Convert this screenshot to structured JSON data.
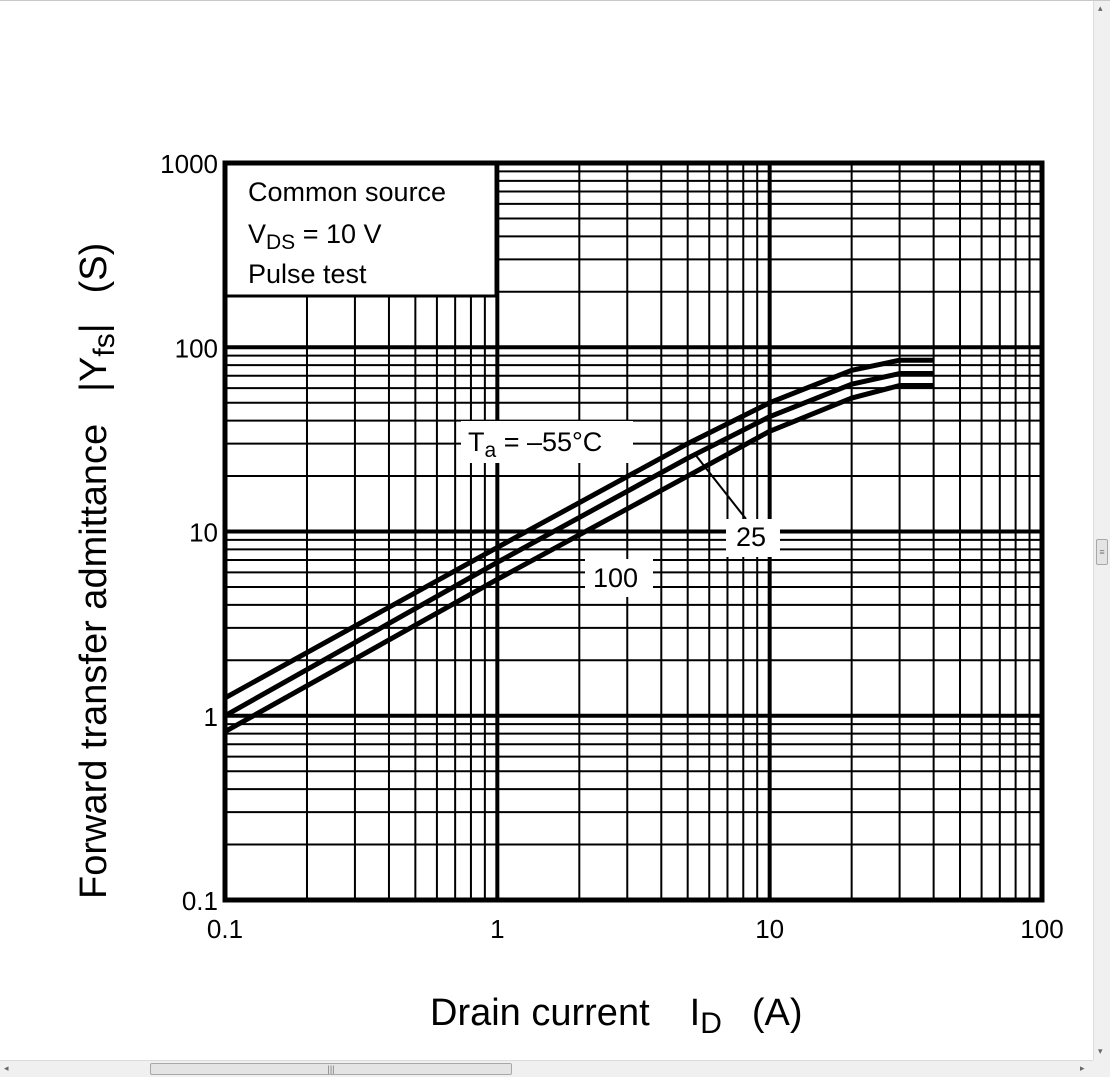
{
  "chart_data": {
    "type": "line",
    "x_scale": "log",
    "y_scale": "log",
    "xlim": [
      0.1,
      100
    ],
    "ylim": [
      0.1,
      1000
    ],
    "x_ticks": [
      "0.1",
      "1",
      "10",
      "100"
    ],
    "y_ticks": [
      "0.1",
      "1",
      "10",
      "100",
      "1000"
    ],
    "x_tick_values": [
      0.1,
      1,
      10,
      100
    ],
    "y_tick_values": [
      0.1,
      1,
      10,
      100,
      1000
    ],
    "xlabel": "Drain current",
    "xlabel_symbol": "I",
    "xlabel_sub": "D",
    "xlabel_unit": "(A)",
    "ylabel": "Forward transfer admittance",
    "ylabel_symbol": "|Y",
    "ylabel_sub": "fs",
    "ylabel_symbol_end": "|",
    "ylabel_unit": "(S)",
    "grid": true,
    "conditions": {
      "line1": "Common source",
      "line2_symbol": "V",
      "line2_sub": "DS",
      "line2_value": " = 10 V",
      "line3": "Pulse test"
    },
    "series": [
      {
        "name": "-55",
        "x": [
          0.1,
          1,
          5,
          10,
          20,
          30,
          40
        ],
        "y": [
          1.25,
          8.2,
          30,
          50,
          75,
          85,
          85
        ]
      },
      {
        "name": "25",
        "x": [
          0.1,
          1,
          5,
          10,
          20,
          30,
          40
        ],
        "y": [
          1.0,
          6.8,
          25,
          42,
          63,
          72,
          72
        ]
      },
      {
        "name": "100",
        "x": [
          0.1,
          1,
          5,
          10,
          20,
          30,
          40
        ],
        "y": [
          0.82,
          5.5,
          20,
          35,
          53,
          62,
          62
        ]
      }
    ],
    "annotations": {
      "ta_symbol": "T",
      "ta_sub": "a",
      "ta_value": " = –55°C",
      "label_25": "25",
      "label_100": "100"
    }
  }
}
